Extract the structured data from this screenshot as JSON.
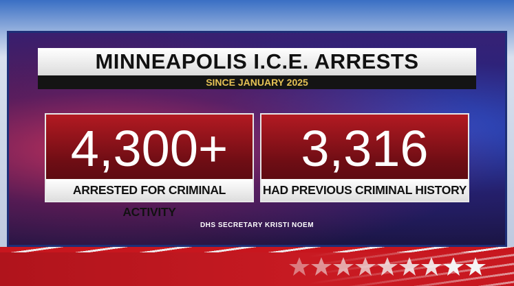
{
  "header": {
    "title": "MINNEAPOLIS I.C.E. ARRESTS",
    "subtitle": "SINCE JANUARY 2025"
  },
  "stats": [
    {
      "value": "4,300+",
      "label": "ARRESTED FOR CRIMINAL ACTIVITY"
    },
    {
      "value": "3,316",
      "label": "HAD PREVIOUS CRIMINAL HISTORY"
    }
  ],
  "source": "DHS SECRETARY KRISTI NOEM"
}
